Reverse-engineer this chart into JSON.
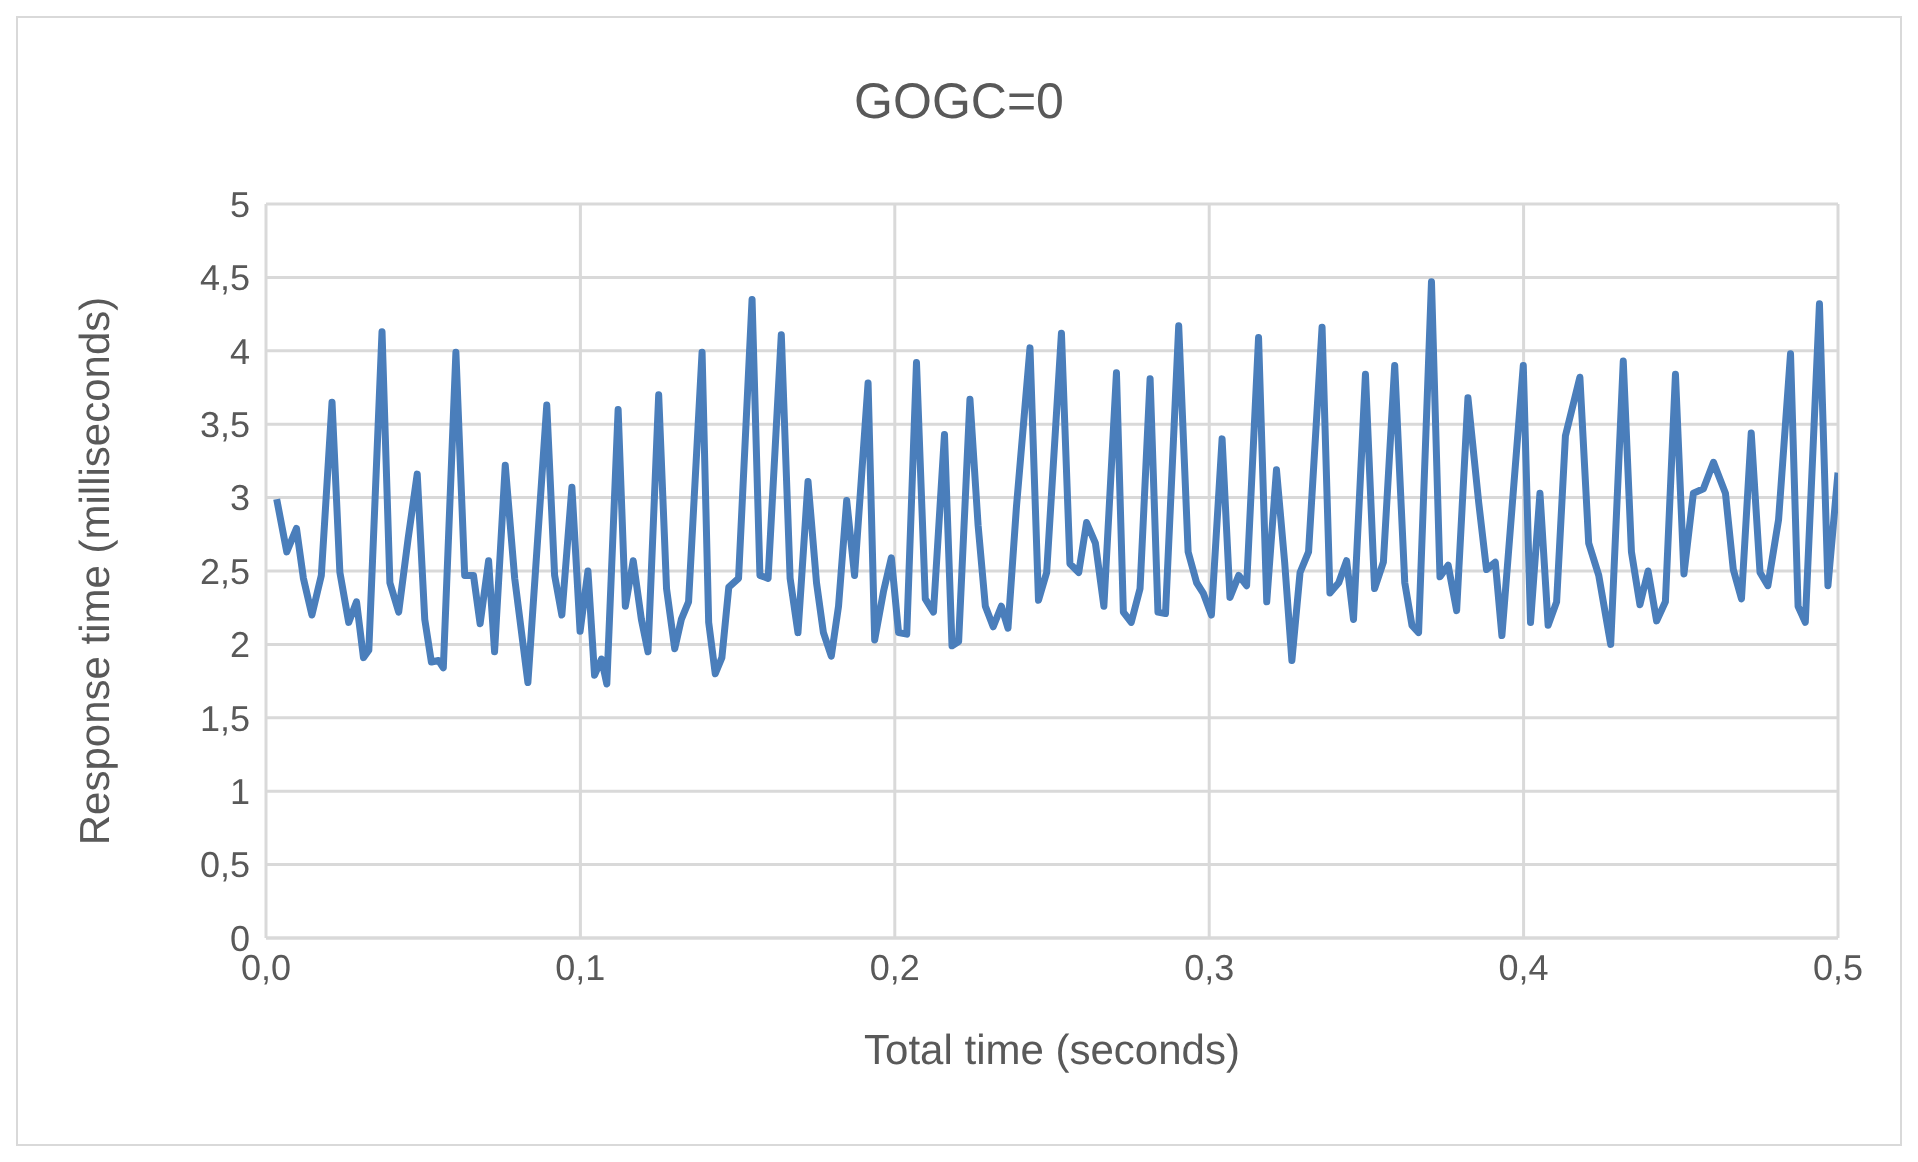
{
  "chart_data": {
    "type": "line",
    "title": "GOGC=0",
    "xlabel": "Total time (seconds)",
    "ylabel": "Response time (milliseconds)",
    "xlim": [
      0,
      0.5
    ],
    "xticks": [
      {
        "value": 0,
        "label": "0,0"
      },
      {
        "value": 0.1,
        "label": "0,1"
      },
      {
        "value": 0.2,
        "label": "0,2"
      },
      {
        "value": 0.3,
        "label": "0,3"
      },
      {
        "value": 0.4,
        "label": "0,4"
      },
      {
        "value": 0.5,
        "label": "0,5"
      }
    ],
    "ylim": [
      0,
      5
    ],
    "yticks": [
      0,
      {
        "value": 0.5,
        "label": "0,5"
      },
      1,
      {
        "value": 1.5,
        "label": "1,5"
      },
      2,
      {
        "value": 2.5,
        "label": "2,5"
      },
      3,
      {
        "value": 3.5,
        "label": "3,5"
      },
      4,
      {
        "value": 4.5,
        "label": "4,5"
      },
      5
    ],
    "grid": true,
    "series": [
      {
        "color": "#4a7ebb",
        "x": [
          0.0034,
          0.0066,
          0.0097,
          0.0119,
          0.0146,
          0.0176,
          0.021,
          0.0235,
          0.0263,
          0.0288,
          0.031,
          0.0327,
          0.0369,
          0.0394,
          0.0422,
          0.0452,
          0.0481,
          0.0505,
          0.0526,
          0.0549,
          0.0564,
          0.0604,
          0.0632,
          0.066,
          0.0681,
          0.0708,
          0.0727,
          0.0761,
          0.0791,
          0.0833,
          0.0893,
          0.0918,
          0.0941,
          0.0973,
          0.0999,
          0.1024,
          0.1045,
          0.1067,
          0.1084,
          0.112,
          0.1143,
          0.1168,
          0.1194,
          0.1215,
          0.1249,
          0.1274,
          0.13,
          0.1321,
          0.1344,
          0.1387,
          0.1408,
          0.1429,
          0.145,
          0.1472,
          0.1503,
          0.1546,
          0.1571,
          0.1597,
          0.1639,
          0.1667,
          0.1692,
          0.1724,
          0.1751,
          0.1773,
          0.1798,
          0.1821,
          0.1847,
          0.1872,
          0.1915,
          0.1936,
          0.1964,
          0.1989,
          0.2012,
          0.2038,
          0.2069,
          0.2097,
          0.2123,
          0.2158,
          0.2182,
          0.2203,
          0.2239,
          0.2265,
          0.2288,
          0.2313,
          0.2339,
          0.236,
          0.2387,
          0.243,
          0.2457,
          0.2483,
          0.253,
          0.2557,
          0.2585,
          0.261,
          0.2638,
          0.2665,
          0.2705,
          0.2727,
          0.2752,
          0.278,
          0.2812,
          0.2837,
          0.2861,
          0.2903,
          0.2933,
          0.296,
          0.2981,
          0.3007,
          0.3041,
          0.3066,
          0.3094,
          0.3119,
          0.3157,
          0.3183,
          0.3214,
          0.324,
          0.3263,
          0.3289,
          0.3316,
          0.3359,
          0.3384,
          0.3412,
          0.3437,
          0.3459,
          0.3497,
          0.3526,
          0.3554,
          0.359,
          0.3622,
          0.3645,
          0.3666,
          0.3707,
          0.3734,
          0.376,
          0.3787,
          0.3823,
          0.3857,
          0.3882,
          0.391,
          0.3931,
          0.3999,
          0.4022,
          0.4052,
          0.4078,
          0.4105,
          0.4133,
          0.4179,
          0.4207,
          0.4239,
          0.4277,
          0.4317,
          0.4343,
          0.437,
          0.4396,
          0.4423,
          0.4451,
          0.4483,
          0.451,
          0.454,
          0.4572,
          0.4604,
          0.4642,
          0.4667,
          0.4693,
          0.4724,
          0.4752,
          0.4777,
          0.4811,
          0.4849,
          0.4873,
          0.4896,
          0.4941,
          0.4968,
          0.5
        ],
        "values": [
          2.99,
          2.63,
          2.79,
          2.45,
          2.2,
          2.47,
          3.65,
          2.49,
          2.15,
          2.29,
          1.91,
          1.96,
          4.13,
          2.42,
          2.22,
          2.72,
          3.16,
          2.17,
          1.88,
          1.89,
          1.84,
          3.99,
          2.47,
          2.47,
          2.14,
          2.57,
          1.95,
          3.22,
          2.45,
          1.74,
          3.63,
          2.47,
          2.2,
          3.07,
          2.09,
          2.5,
          1.79,
          1.9,
          1.73,
          3.6,
          2.26,
          2.57,
          2.17,
          1.95,
          3.7,
          2.38,
          1.97,
          2.17,
          2.29,
          3.99,
          2.15,
          1.8,
          1.91,
          2.39,
          2.45,
          4.35,
          2.47,
          2.45,
          4.11,
          2.45,
          2.08,
          3.11,
          2.42,
          2.08,
          1.92,
          2.26,
          2.98,
          2.47,
          3.78,
          2.03,
          2.36,
          2.59,
          2.08,
          2.07,
          3.92,
          2.31,
          2.22,
          3.43,
          1.99,
          2.02,
          3.67,
          2.81,
          2.26,
          2.12,
          2.26,
          2.11,
          2.94,
          4.02,
          2.3,
          2.49,
          4.12,
          2.55,
          2.49,
          2.83,
          2.69,
          2.26,
          3.85,
          2.22,
          2.15,
          2.38,
          3.81,
          2.22,
          2.21,
          4.17,
          2.63,
          2.42,
          2.35,
          2.2,
          3.4,
          2.32,
          2.47,
          2.4,
          4.09,
          2.29,
          3.19,
          2.56,
          1.89,
          2.49,
          2.63,
          4.16,
          2.35,
          2.42,
          2.57,
          2.17,
          3.84,
          2.38,
          2.56,
          3.9,
          2.42,
          2.13,
          2.08,
          4.47,
          2.46,
          2.54,
          2.23,
          3.68,
          2.97,
          2.51,
          2.56,
          2.06,
          3.9,
          2.15,
          3.03,
          2.13,
          2.29,
          3.42,
          3.82,
          2.69,
          2.47,
          2.0,
          3.93,
          2.63,
          2.27,
          2.5,
          2.16,
          2.29,
          3.84,
          2.48,
          3.03,
          3.06,
          3.24,
          3.03,
          2.51,
          2.31,
          3.44,
          2.49,
          2.4,
          2.85,
          3.98,
          2.26,
          2.15,
          4.32,
          2.4,
          3.17
        ]
      }
    ]
  }
}
